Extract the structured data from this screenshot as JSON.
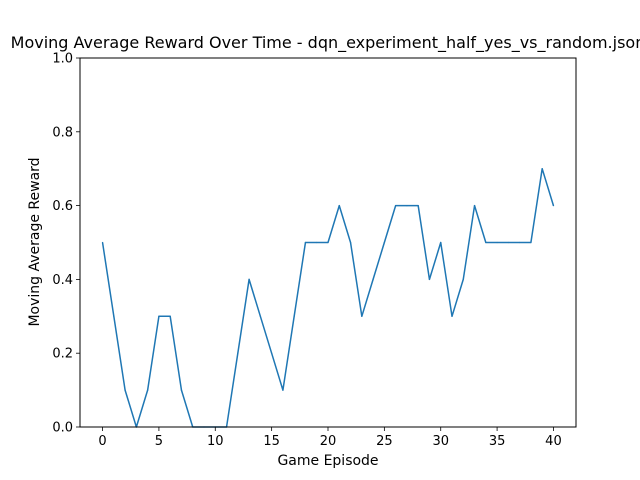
{
  "chart_data": {
    "type": "line",
    "title": "Moving Average Reward Over Time - dqn_experiment_half_yes_vs_random.json",
    "xlabel": "Game Episode",
    "ylabel": "Moving Average Reward",
    "xlim": [
      -2,
      42
    ],
    "ylim": [
      0,
      1.0
    ],
    "xticks": [
      "0",
      "5",
      "10",
      "15",
      "20",
      "25",
      "30",
      "35",
      "40"
    ],
    "yticks": [
      "0.0",
      "0.2",
      "0.4",
      "0.6",
      "0.8",
      "1.0"
    ],
    "grid": false,
    "series": [
      {
        "color": "#1f77b4",
        "x": [
          0,
          1,
          2,
          3,
          4,
          5,
          6,
          7,
          8,
          9,
          10,
          11,
          12,
          13,
          14,
          15,
          16,
          17,
          18,
          19,
          20,
          21,
          22,
          23,
          24,
          25,
          26,
          27,
          28,
          29,
          30,
          31,
          32,
          33,
          34,
          35,
          36,
          37,
          38,
          39,
          40
        ],
        "y": [
          0.5,
          0.3,
          0.1,
          0.0,
          0.1,
          0.3,
          0.3,
          0.1,
          0.0,
          0.0,
          0.0,
          0.0,
          0.2,
          0.4,
          0.3,
          0.2,
          0.1,
          0.3,
          0.5,
          0.5,
          0.5,
          0.6,
          0.5,
          0.3,
          0.4,
          0.5,
          0.6,
          0.6,
          0.6,
          0.4,
          0.5,
          0.3,
          0.4,
          0.6,
          0.5,
          0.5,
          0.5,
          0.5,
          0.5,
          0.7,
          0.6
        ]
      }
    ]
  }
}
